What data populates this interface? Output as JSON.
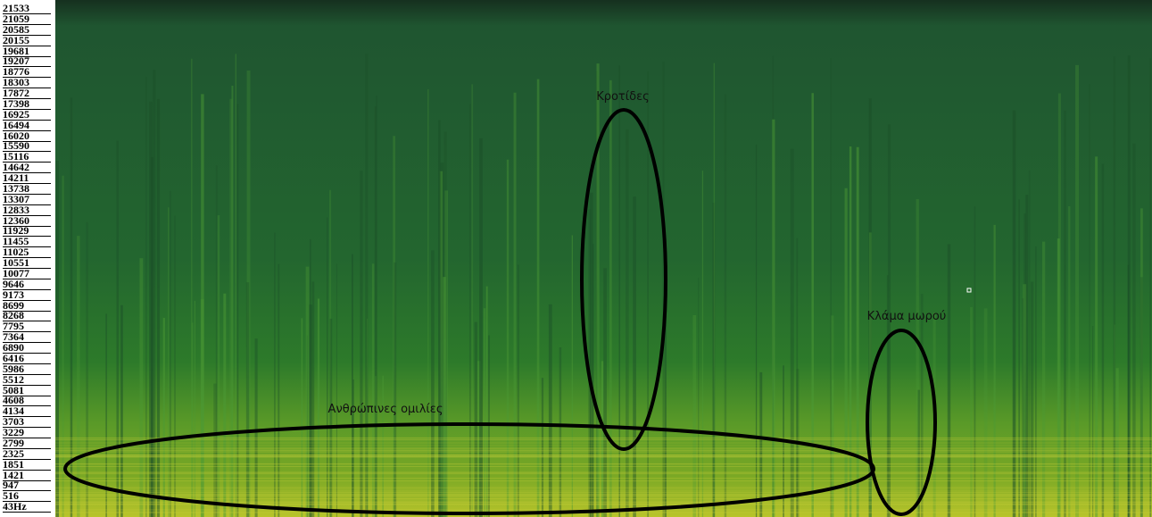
{
  "frequency_labels": [
    "21533",
    "21059",
    "20585",
    "20155",
    "19681",
    "19207",
    "18776",
    "18303",
    "17872",
    "17398",
    "16925",
    "16494",
    "16020",
    "15590",
    "15116",
    "14642",
    "14211",
    "13738",
    "13307",
    "12833",
    "12360",
    "11929",
    "11455",
    "11025",
    "10551",
    "10077",
    "9646",
    "9173",
    "8699",
    "8268",
    "7795",
    "7364",
    "6890",
    "6416",
    "5986",
    "5512",
    "5081",
    "4608",
    "4134",
    "3703",
    "3229",
    "2799",
    "2325",
    "1851",
    "1421",
    "947",
    "516",
    "43Hz"
  ],
  "annotations": {
    "speech": "Ανθρώπινες ομιλίες",
    "firecrackers": "Κροτίδες",
    "baby_cry": "Κλάμα μωρού"
  }
}
